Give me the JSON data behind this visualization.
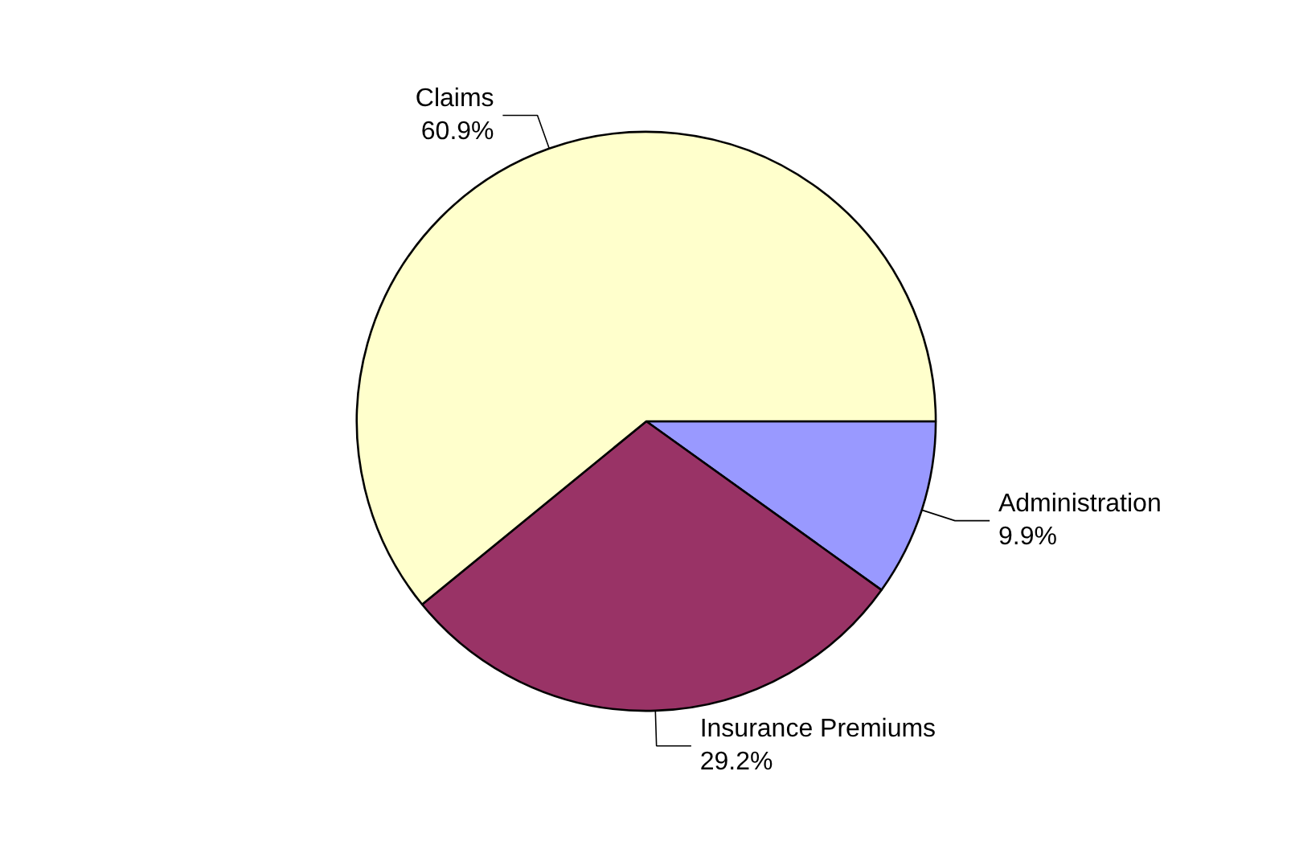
{
  "chart_data": {
    "type": "pie",
    "categories": [
      "Administration",
      "Insurance Premiums",
      "Claims"
    ],
    "values": [
      9.9,
      29.2,
      60.9
    ],
    "colors": [
      "#9999ff",
      "#993366",
      "#ffffcc"
    ],
    "value_labels": [
      "9.9%",
      "29.2%",
      "60.9%"
    ]
  }
}
